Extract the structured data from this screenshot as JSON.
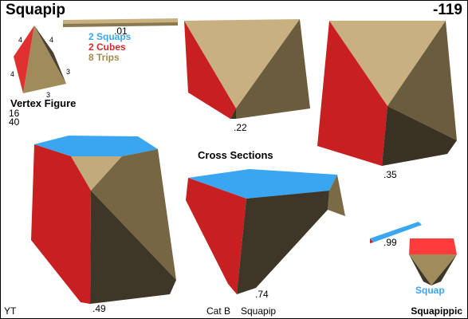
{
  "header": {
    "title": "Squapip",
    "code": "-119"
  },
  "legend": {
    "items": [
      {
        "text": "2 Squaps",
        "color": "#3aa6f2"
      },
      {
        "text": "2 Cubes",
        "color": "#d42a2a"
      },
      {
        "text": "8 Trips",
        "color": "#a08a55"
      }
    ]
  },
  "vertex_figure": {
    "label": "Vertex Figure",
    "line1": "16",
    "line2": "40",
    "edge_labels": [
      "4",
      "4",
      "4",
      "3",
      "3"
    ]
  },
  "cross_sections": {
    "heading": "Cross Sections",
    "values": [
      ".01",
      ".22",
      ".35",
      ".49",
      ".74",
      ".99"
    ]
  },
  "footer": {
    "left": "YT",
    "category": "Cat B",
    "name": "Squapip",
    "right": "Squapippic"
  },
  "dual_label": "Squap",
  "colors": {
    "square": "#3aa6f2",
    "cube": "#d42a2a",
    "trip_light": "#c2aa7a",
    "trip_mid": "#7a6a45",
    "trip_dark": "#3e3626"
  }
}
